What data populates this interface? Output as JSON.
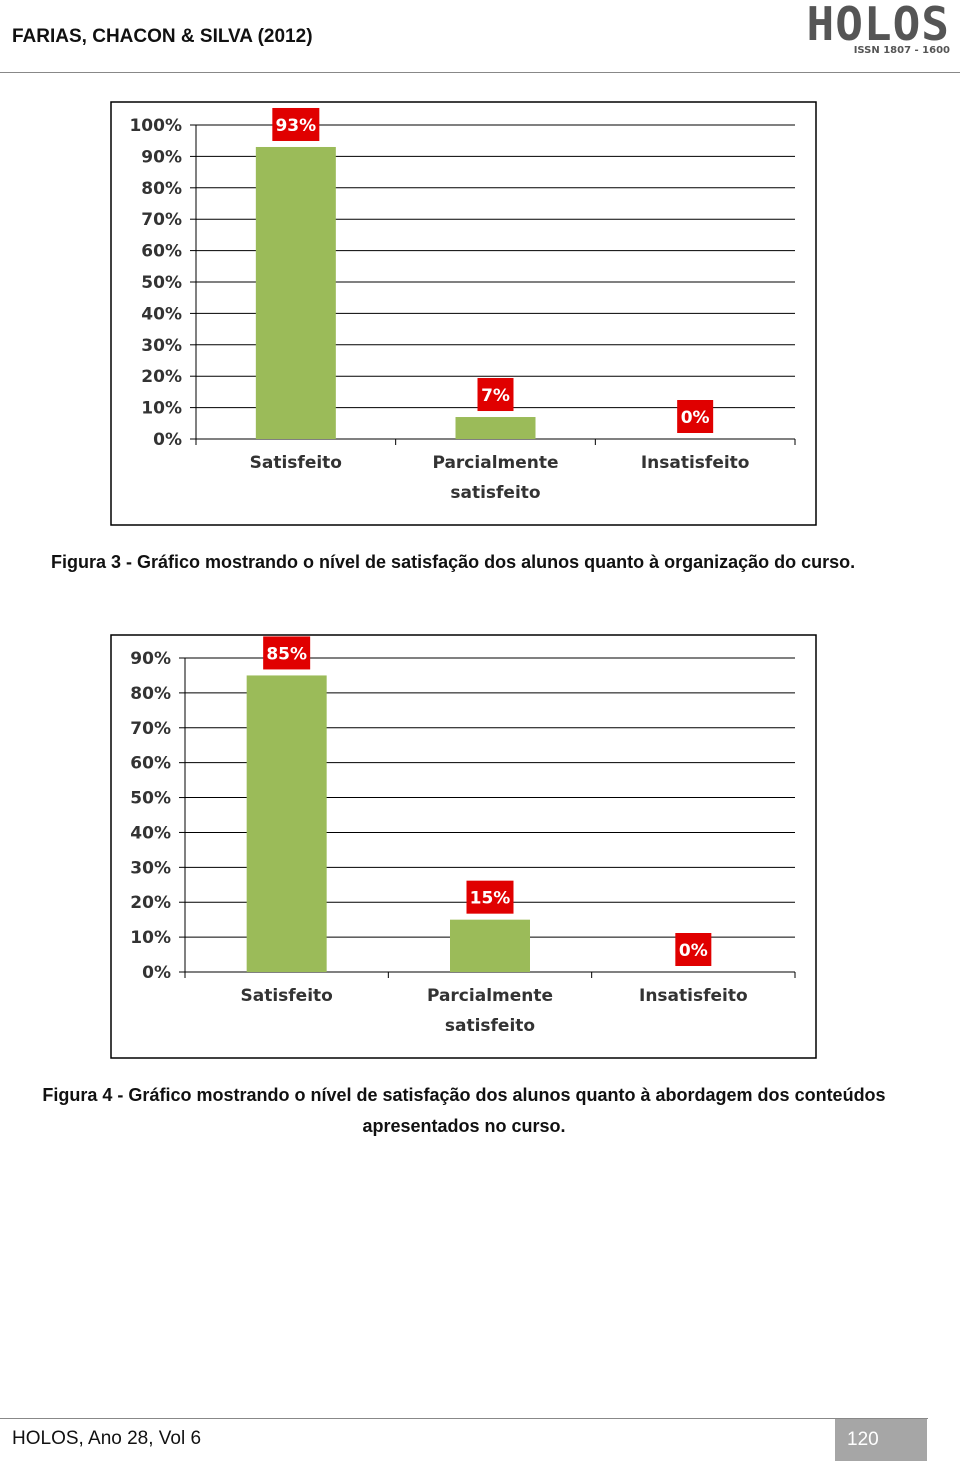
{
  "header": {
    "left": "FARIAS, CHACON & SILVA (2012)",
    "logo": "HOLOS",
    "issn": "ISSN 1807 - 1600"
  },
  "chart_data": [
    {
      "type": "bar",
      "categories": [
        "Satisfeito",
        "Parcialmente satisfeito",
        "Insatisfeito"
      ],
      "values": [
        93,
        7,
        0
      ],
      "value_labels": [
        "93%",
        "7%",
        "0%"
      ],
      "color": "#9bbb59",
      "label_color": "#e00000",
      "ylim": [
        0,
        100
      ],
      "yticks": [
        {
          "value": 0,
          "label": "0%"
        },
        {
          "value": 10,
          "label": "10%"
        },
        {
          "value": 20,
          "label": "20%"
        },
        {
          "value": 30,
          "label": "30%"
        },
        {
          "value": 40,
          "label": "40%"
        },
        {
          "value": 50,
          "label": "50%"
        },
        {
          "value": 60,
          "label": "60%"
        },
        {
          "value": 70,
          "label": "70%"
        },
        {
          "value": 80,
          "label": "80%"
        },
        {
          "value": 90,
          "label": "90%"
        },
        {
          "value": 100,
          "label": "100%"
        }
      ],
      "grid": true
    },
    {
      "type": "bar",
      "categories": [
        "Satisfeito",
        "Parcialmente satisfeito",
        "Insatisfeito"
      ],
      "values": [
        85,
        15,
        0
      ],
      "value_labels": [
        "85%",
        "15%",
        "0%"
      ],
      "color": "#9bbb59",
      "label_color": "#e00000",
      "ylim": [
        0,
        90
      ],
      "yticks": [
        {
          "value": 0,
          "label": "0%"
        },
        {
          "value": 10,
          "label": "10%"
        },
        {
          "value": 20,
          "label": "20%"
        },
        {
          "value": 30,
          "label": "30%"
        },
        {
          "value": 40,
          "label": "40%"
        },
        {
          "value": 50,
          "label": "50%"
        },
        {
          "value": 60,
          "label": "60%"
        },
        {
          "value": 70,
          "label": "70%"
        },
        {
          "value": 80,
          "label": "80%"
        },
        {
          "value": 90,
          "label": "90%"
        }
      ],
      "grid": true
    }
  ],
  "captions": [
    "Figura 3 - Gráfico mostrando o nível de satisfação dos alunos quanto à organização do curso.",
    "Figura 4 - Gráfico mostrando o nível de satisfação dos alunos quanto à abordagem dos conteúdos apresentados no curso."
  ],
  "footer": {
    "left": "HOLOS, Ano 28, Vol 6",
    "page": "120"
  }
}
